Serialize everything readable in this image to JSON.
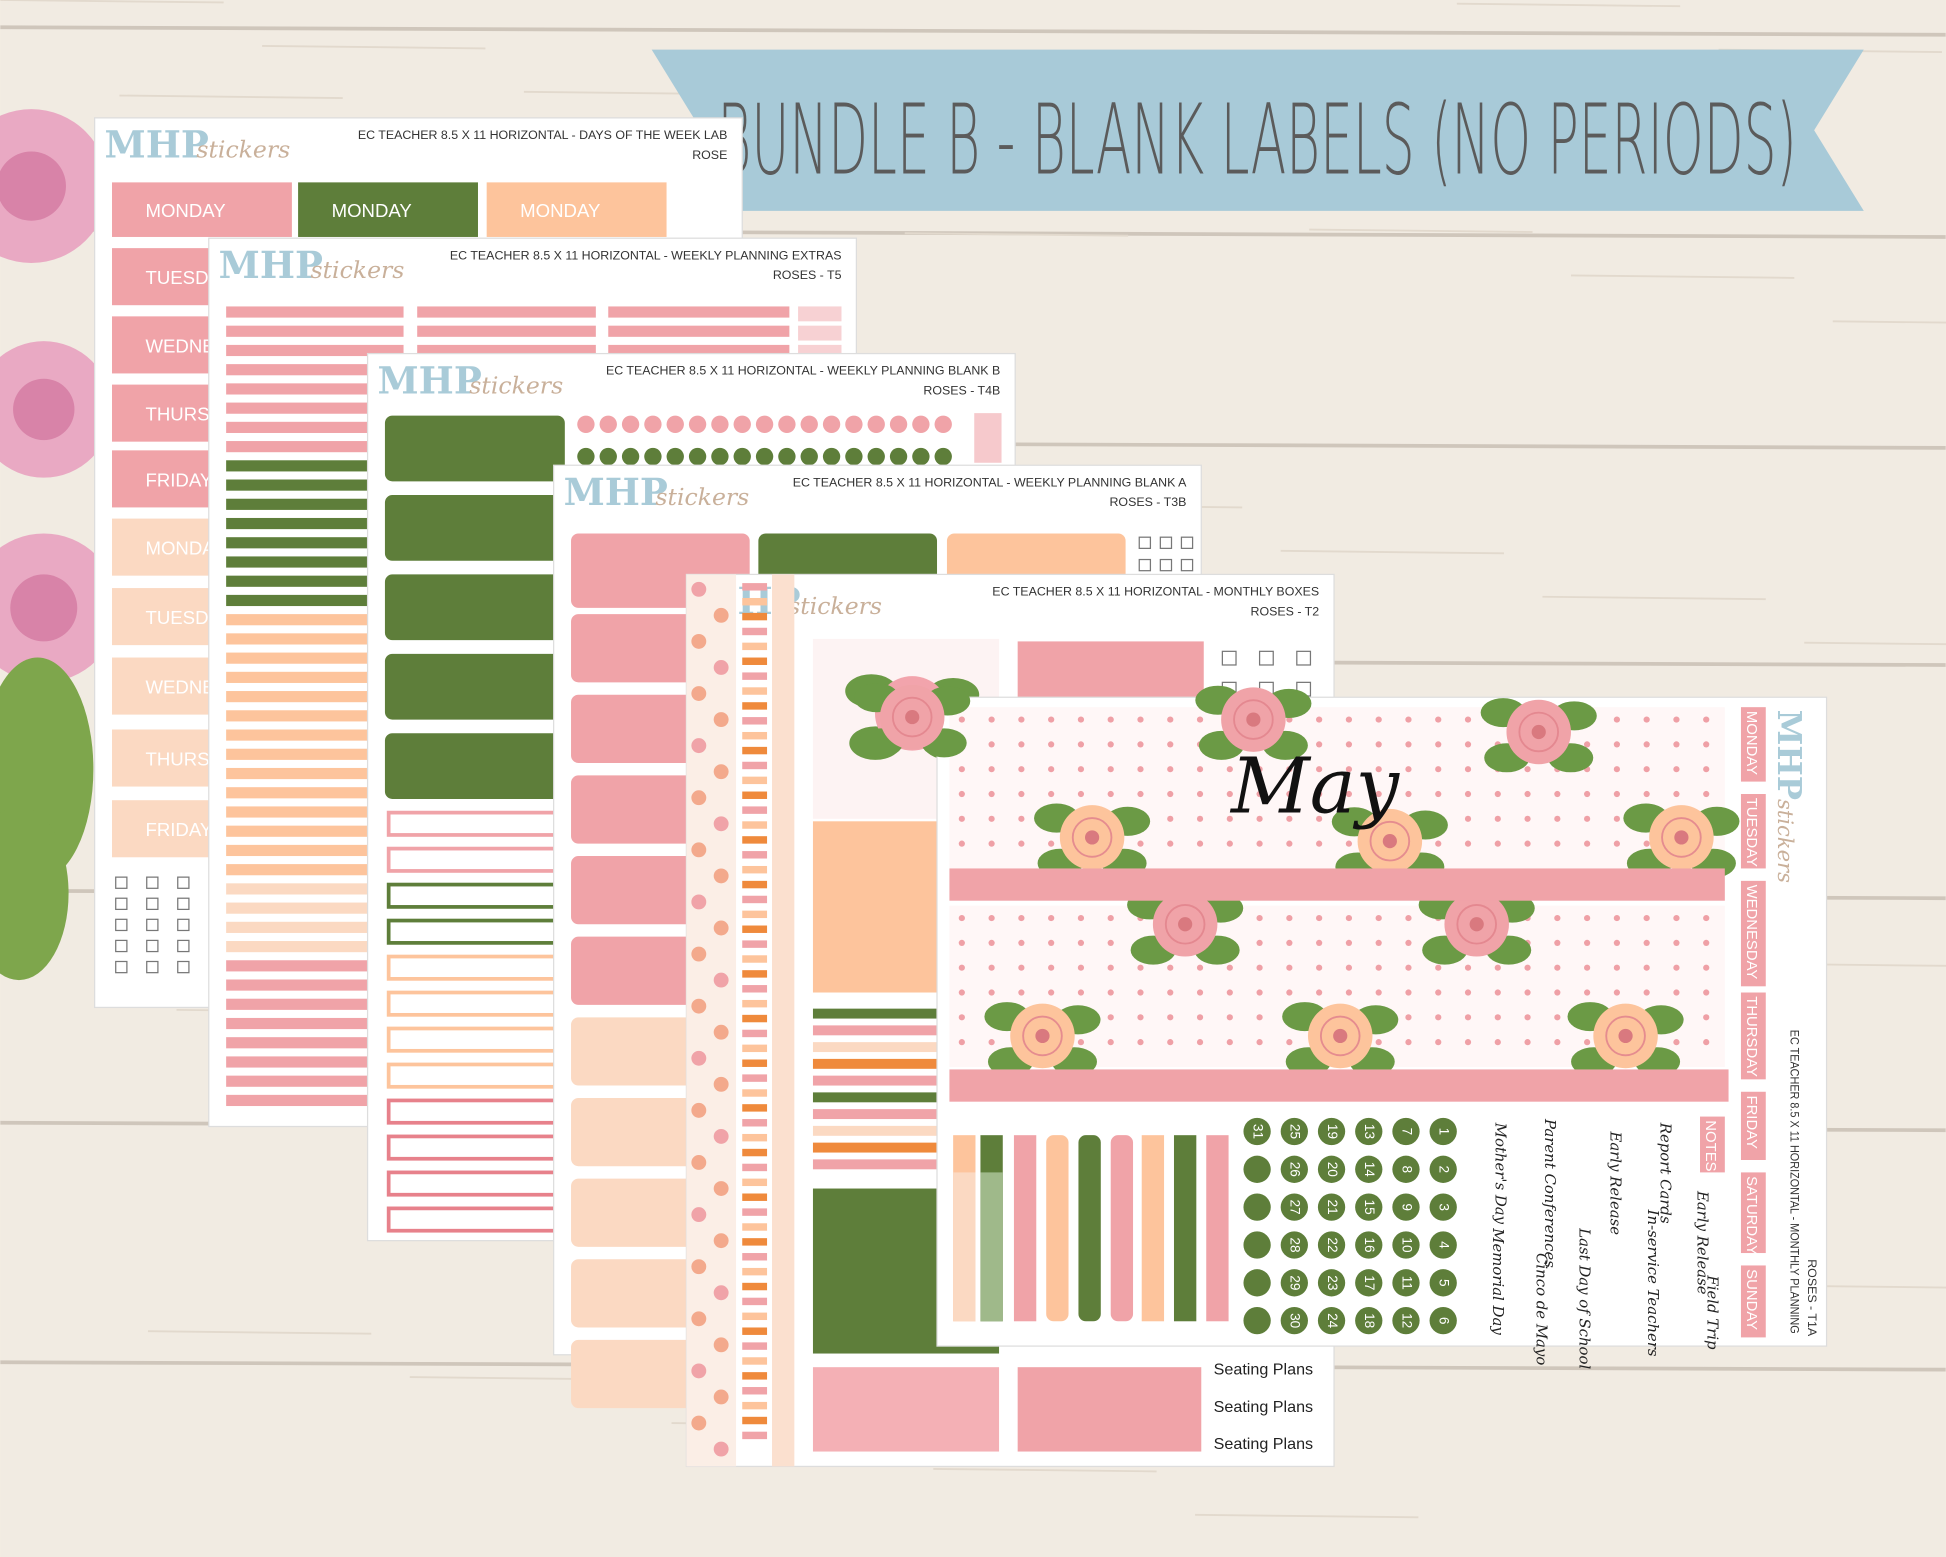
{
  "banner": "BUNDLE B - BLANK LABELS (NO PERIODS)",
  "sheets": [
    {
      "brand": "MHP",
      "brand_script": "stickers",
      "title": "EC TEACHER 8.5 X 11 HORIZONTAL - DAYS OF THE WEEK LAB",
      "code": "ROSE",
      "labels": [
        "MONDAY",
        "MONDAY",
        "MONDAY",
        "TUESDAY",
        "WEDNESDAY",
        "THURSDAY",
        "FRIDAY",
        "MONDAY",
        "TUESDAY",
        "WEDNESDAY",
        "THURSDAY",
        "FRIDAY"
      ]
    },
    {
      "brand": "MHP",
      "brand_script": "stickers",
      "title": "EC TEACHER 8.5 X 11 HORIZONTAL - WEEKLY PLANNING EXTRAS",
      "code": "ROSES - T5"
    },
    {
      "brand": "MHP",
      "brand_script": "stickers",
      "title": "EC TEACHER 8.5 X 11 HORIZONTAL - WEEKLY PLANNING BLANK B",
      "code": "ROSES - T4B"
    },
    {
      "brand": "MHP",
      "brand_script": "stickers",
      "title": "EC TEACHER 8.5 X 11 HORIZONTAL - WEEKLY PLANNING BLANK A",
      "code": "ROSES - T3B"
    },
    {
      "brand": "MHP",
      "brand_script": "stickers",
      "title": "EC TEACHER 8.5 X 11 HORIZONTAL - MONTHLY BOXES",
      "code": "ROSES - T2",
      "labels": [
        "Seating Plans",
        "Seating Plans",
        "Seating Plans"
      ]
    }
  ],
  "monthly": {
    "month": "May",
    "brand": "MHP",
    "brand_script": "stickers",
    "side_title": "EC TEACHER 8.5 X 11 HORIZONTAL - MONTHLY PLANNING",
    "code": "ROSES - T1A",
    "days": [
      "MONDAY",
      "TUESDAY",
      "WEDNESDAY",
      "THURSDAY",
      "FRIDAY",
      "SATURDAY",
      "SUNDAY"
    ],
    "notes": "NOTES",
    "numbers": [
      1,
      2,
      3,
      4,
      5,
      6,
      7,
      8,
      9,
      10,
      11,
      12,
      13,
      14,
      15,
      16,
      17,
      18,
      19,
      20,
      21,
      22,
      23,
      24,
      25,
      26,
      27,
      28,
      29,
      30,
      31
    ],
    "phrases": [
      "Report Cards",
      "Early Release",
      "Parent Conferences",
      "Mother's Day",
      "Early Release",
      "In-service Teachers",
      "Last Day of School",
      "Field Trip",
      "Cinco de Mayo",
      "Memorial Day"
    ]
  }
}
